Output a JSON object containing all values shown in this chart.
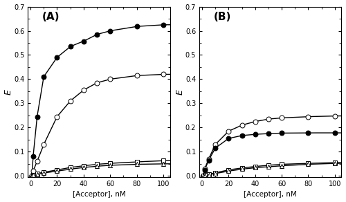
{
  "panel_A": {
    "label": "(A)",
    "filled_circle": {
      "x": [
        1,
        2,
        5,
        10,
        20,
        30,
        40,
        50,
        60,
        80,
        100
      ],
      "y": [
        0.0,
        0.08,
        0.245,
        0.41,
        0.49,
        0.535,
        0.557,
        0.585,
        0.6,
        0.618,
        0.625
      ]
    },
    "open_circle": {
      "x": [
        1,
        2,
        5,
        10,
        20,
        30,
        40,
        50,
        60,
        80,
        100
      ],
      "y": [
        0.0,
        0.02,
        0.06,
        0.13,
        0.245,
        0.31,
        0.355,
        0.385,
        0.4,
        0.415,
        0.42
      ]
    },
    "open_square": {
      "x": [
        1,
        2,
        5,
        10,
        20,
        30,
        40,
        50,
        60,
        80,
        100
      ],
      "y": [
        0.0,
        0.005,
        0.01,
        0.015,
        0.025,
        0.035,
        0.042,
        0.048,
        0.052,
        0.058,
        0.063
      ]
    },
    "open_triangle": {
      "x": [
        1,
        2,
        5,
        10,
        20,
        30,
        40,
        50,
        60,
        80,
        100
      ],
      "y": [
        0.0,
        0.003,
        0.007,
        0.012,
        0.02,
        0.028,
        0.035,
        0.04,
        0.044,
        0.048,
        0.05
      ]
    }
  },
  "panel_B": {
    "label": "(B)",
    "open_circle": {
      "x": [
        1,
        2,
        5,
        10,
        20,
        30,
        40,
        50,
        60,
        80,
        100
      ],
      "y": [
        0.0,
        0.03,
        0.07,
        0.13,
        0.185,
        0.21,
        0.225,
        0.235,
        0.24,
        0.245,
        0.248
      ]
    },
    "filled_circle": {
      "x": [
        1,
        2,
        5,
        10,
        20,
        30,
        40,
        50,
        60,
        80,
        100
      ],
      "y": [
        0.0,
        0.025,
        0.065,
        0.115,
        0.155,
        0.167,
        0.172,
        0.175,
        0.177,
        0.178,
        0.178
      ]
    },
    "open_square": {
      "x": [
        1,
        2,
        5,
        10,
        20,
        30,
        40,
        50,
        60,
        80,
        100
      ],
      "y": [
        0.0,
        0.003,
        0.007,
        0.013,
        0.025,
        0.033,
        0.039,
        0.044,
        0.048,
        0.052,
        0.055
      ]
    },
    "open_triangle": {
      "x": [
        1,
        2,
        5,
        10,
        20,
        30,
        40,
        50,
        60,
        80,
        100
      ],
      "y": [
        0.0,
        0.002,
        0.005,
        0.01,
        0.02,
        0.028,
        0.034,
        0.038,
        0.042,
        0.048,
        0.052
      ]
    }
  },
  "xlim": [
    -2,
    105
  ],
  "ylim": [
    -0.005,
    0.7
  ],
  "yticks": [
    0.0,
    0.1,
    0.2,
    0.3,
    0.4,
    0.5,
    0.6,
    0.7
  ],
  "xticks": [
    0,
    20,
    40,
    60,
    80,
    100
  ],
  "xlabel": "[Acceptor], nM",
  "ylabel": "E",
  "line_color": "#000000",
  "marker_size": 5,
  "line_width": 1.0
}
